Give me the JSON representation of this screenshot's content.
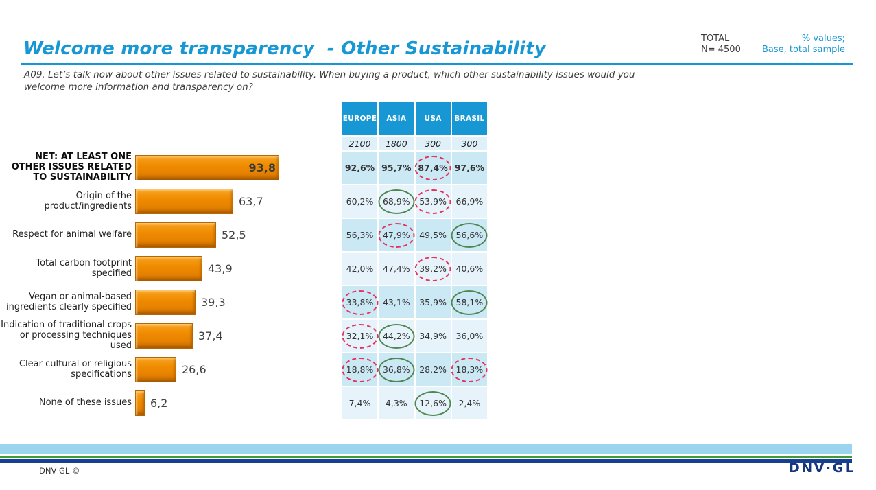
{
  "header": {
    "title": "Welcome more transparency  - Other Sustainability",
    "total_label": "TOTAL",
    "total_n": "N= 4500",
    "note_line1": "% values;",
    "note_line2": "Base, total sample"
  },
  "question": {
    "text": "A09. Let’s talk now about other issues related to sustainability. When buying a product, which other sustainability issues would you welcome more information and transparency on?"
  },
  "colors": {
    "accent_blue": "#1798D4",
    "bar_orange": "#EF8A00",
    "row_dark": "#CBE8F5",
    "row_light": "#E6F3FB",
    "circle_red": "#E8315B",
    "circle_green": "#4F8750",
    "stripe_light_blue": "#9BD4EF",
    "stripe_green": "#3F9C35",
    "stripe_navy": "#143F92"
  },
  "chart_data": {
    "type": "bar",
    "orientation": "horizontal",
    "title": "",
    "xlabel": "",
    "ylabel": "",
    "value_scale_max": 100,
    "legend": "none",
    "columns": [
      "EUROPE",
      "ASIA",
      "USA",
      "BRASIL"
    ],
    "bases": [
      "2100",
      "1800",
      "300",
      "300"
    ],
    "rows": [
      {
        "label": "NET: AT LEAST ONE OTHER ISSUES RELATED TO SUSTAINABILITY",
        "bold": true,
        "value": 93.8,
        "value_label": "93,8",
        "value_inside": true,
        "cells": [
          {
            "text": "92,6%",
            "circle": null
          },
          {
            "text": "95,7%",
            "circle": null
          },
          {
            "text": "87,4%",
            "circle": "red"
          },
          {
            "text": "97,6%",
            "circle": null
          }
        ]
      },
      {
        "label": "Origin of the product/ingredients",
        "bold": false,
        "value": 63.7,
        "value_label": "63,7",
        "value_inside": false,
        "cells": [
          {
            "text": "60,2%",
            "circle": null
          },
          {
            "text": "68,9%",
            "circle": "green"
          },
          {
            "text": "53,9%",
            "circle": "red"
          },
          {
            "text": "66,9%",
            "circle": null
          }
        ]
      },
      {
        "label": "Respect for animal welfare",
        "bold": false,
        "value": 52.5,
        "value_label": "52,5",
        "value_inside": false,
        "cells": [
          {
            "text": "56,3%",
            "circle": null
          },
          {
            "text": "47,9%",
            "circle": "red"
          },
          {
            "text": "49,5%",
            "circle": null
          },
          {
            "text": "56,6%",
            "circle": "green"
          }
        ]
      },
      {
        "label": "Total carbon footprint specified",
        "bold": false,
        "value": 43.9,
        "value_label": "43,9",
        "value_inside": false,
        "cells": [
          {
            "text": "42,0%",
            "circle": null
          },
          {
            "text": "47,4%",
            "circle": null
          },
          {
            "text": "39,2%",
            "circle": "red"
          },
          {
            "text": "40,6%",
            "circle": null
          }
        ]
      },
      {
        "label": "Vegan or animal-based ingredients clearly specified",
        "bold": false,
        "value": 39.3,
        "value_label": "39,3",
        "value_inside": false,
        "cells": [
          {
            "text": "33,8%",
            "circle": "red"
          },
          {
            "text": "43,1%",
            "circle": null
          },
          {
            "text": "35,9%",
            "circle": null
          },
          {
            "text": "58,1%",
            "circle": "green"
          }
        ]
      },
      {
        "label": "Indication of traditional crops or processing techniques used",
        "bold": false,
        "value": 37.4,
        "value_label": "37,4",
        "value_inside": false,
        "cells": [
          {
            "text": "32,1%",
            "circle": "red"
          },
          {
            "text": "44,2%",
            "circle": "green"
          },
          {
            "text": "34,9%",
            "circle": null
          },
          {
            "text": "36,0%",
            "circle": null
          }
        ]
      },
      {
        "label": "Clear cultural or religious specifications",
        "bold": false,
        "value": 26.6,
        "value_label": "26,6",
        "value_inside": false,
        "cells": [
          {
            "text": "18,8%",
            "circle": "red"
          },
          {
            "text": "36,8%",
            "circle": "green"
          },
          {
            "text": "28,2%",
            "circle": null
          },
          {
            "text": "18,3%",
            "circle": "red"
          }
        ]
      },
      {
        "label": "None of these issues",
        "bold": false,
        "value": 6.2,
        "value_label": "6,2",
        "value_inside": false,
        "cells": [
          {
            "text": "7,4%",
            "circle": null
          },
          {
            "text": "4,3%",
            "circle": null
          },
          {
            "text": "12,6%",
            "circle": "green"
          },
          {
            "text": "2,4%",
            "circle": null
          }
        ]
      }
    ]
  },
  "footer": {
    "copyright": "DNV GL ©",
    "logo": "DNV·GL"
  }
}
